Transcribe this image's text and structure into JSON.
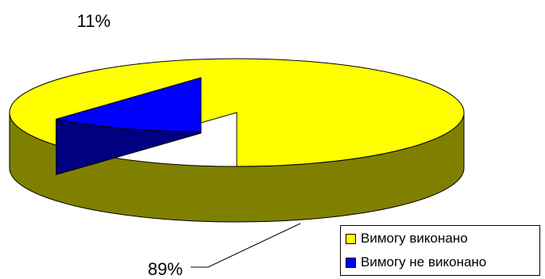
{
  "chart_data": {
    "type": "pie",
    "three_d": true,
    "legend_position": "bottom-right",
    "slices": [
      {
        "name": "Вимогу виконано",
        "value": 89,
        "label": "89%",
        "color": "#FFFF00",
        "side_color": "#808000"
      },
      {
        "name": "Вимогу не виконано",
        "value": 11,
        "label": "11%",
        "color": "#0000FF",
        "side_color": "#000080",
        "exploded": true
      }
    ]
  }
}
